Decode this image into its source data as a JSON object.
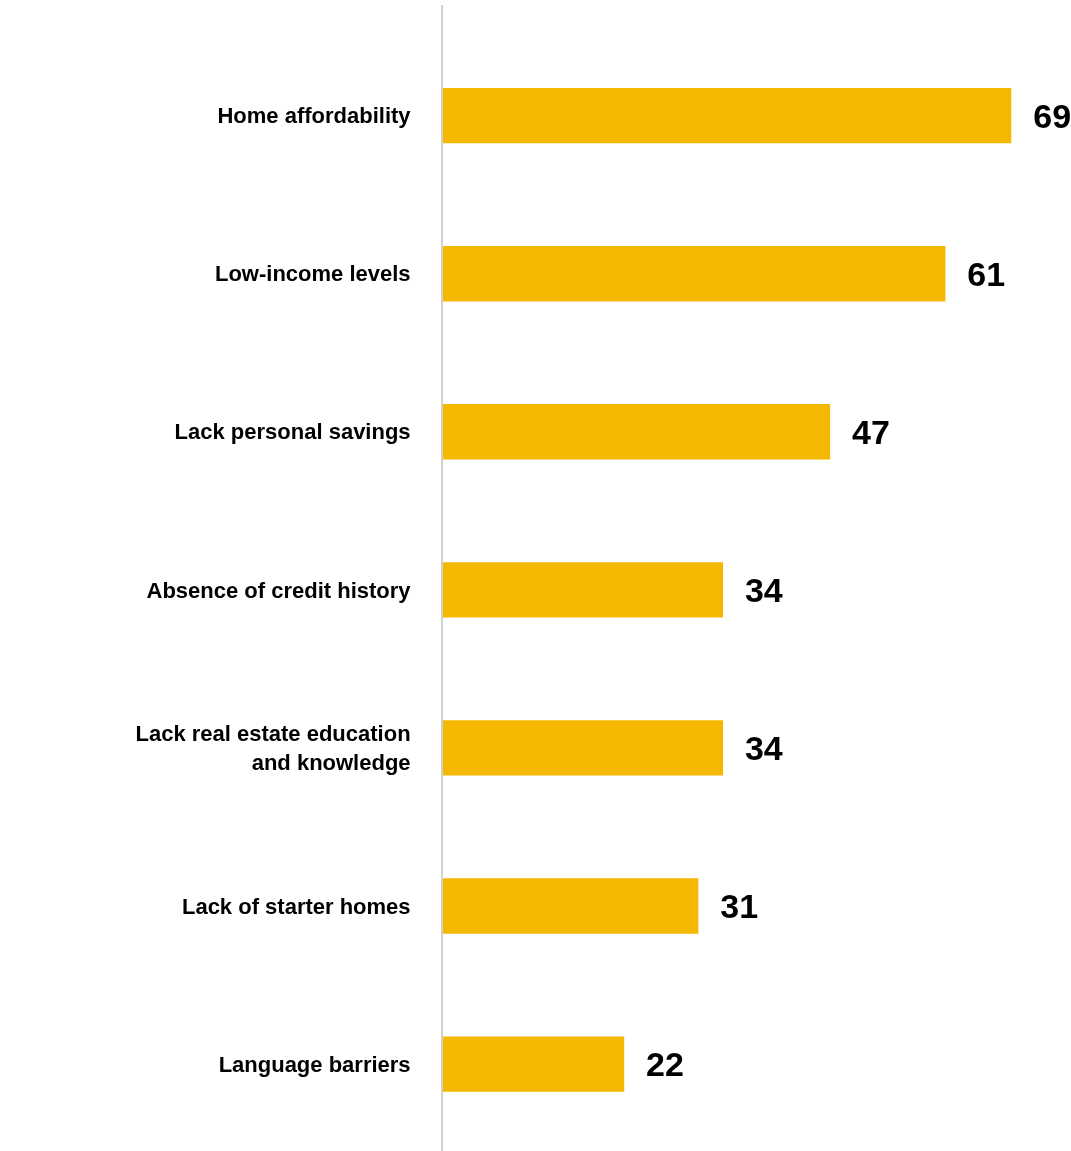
{
  "chart_data": {
    "type": "bar",
    "orientation": "horizontal",
    "data_labels": true,
    "categories": [
      "Home affordability",
      "Low-income levels",
      "Lack personal savings",
      "Absence of credit history",
      "Lack real estate education and knowledge",
      "Lack of starter homes",
      "Language barriers"
    ],
    "values": [
      69,
      61,
      47,
      34,
      34,
      31,
      22
    ],
    "color": "#f5b800"
  }
}
